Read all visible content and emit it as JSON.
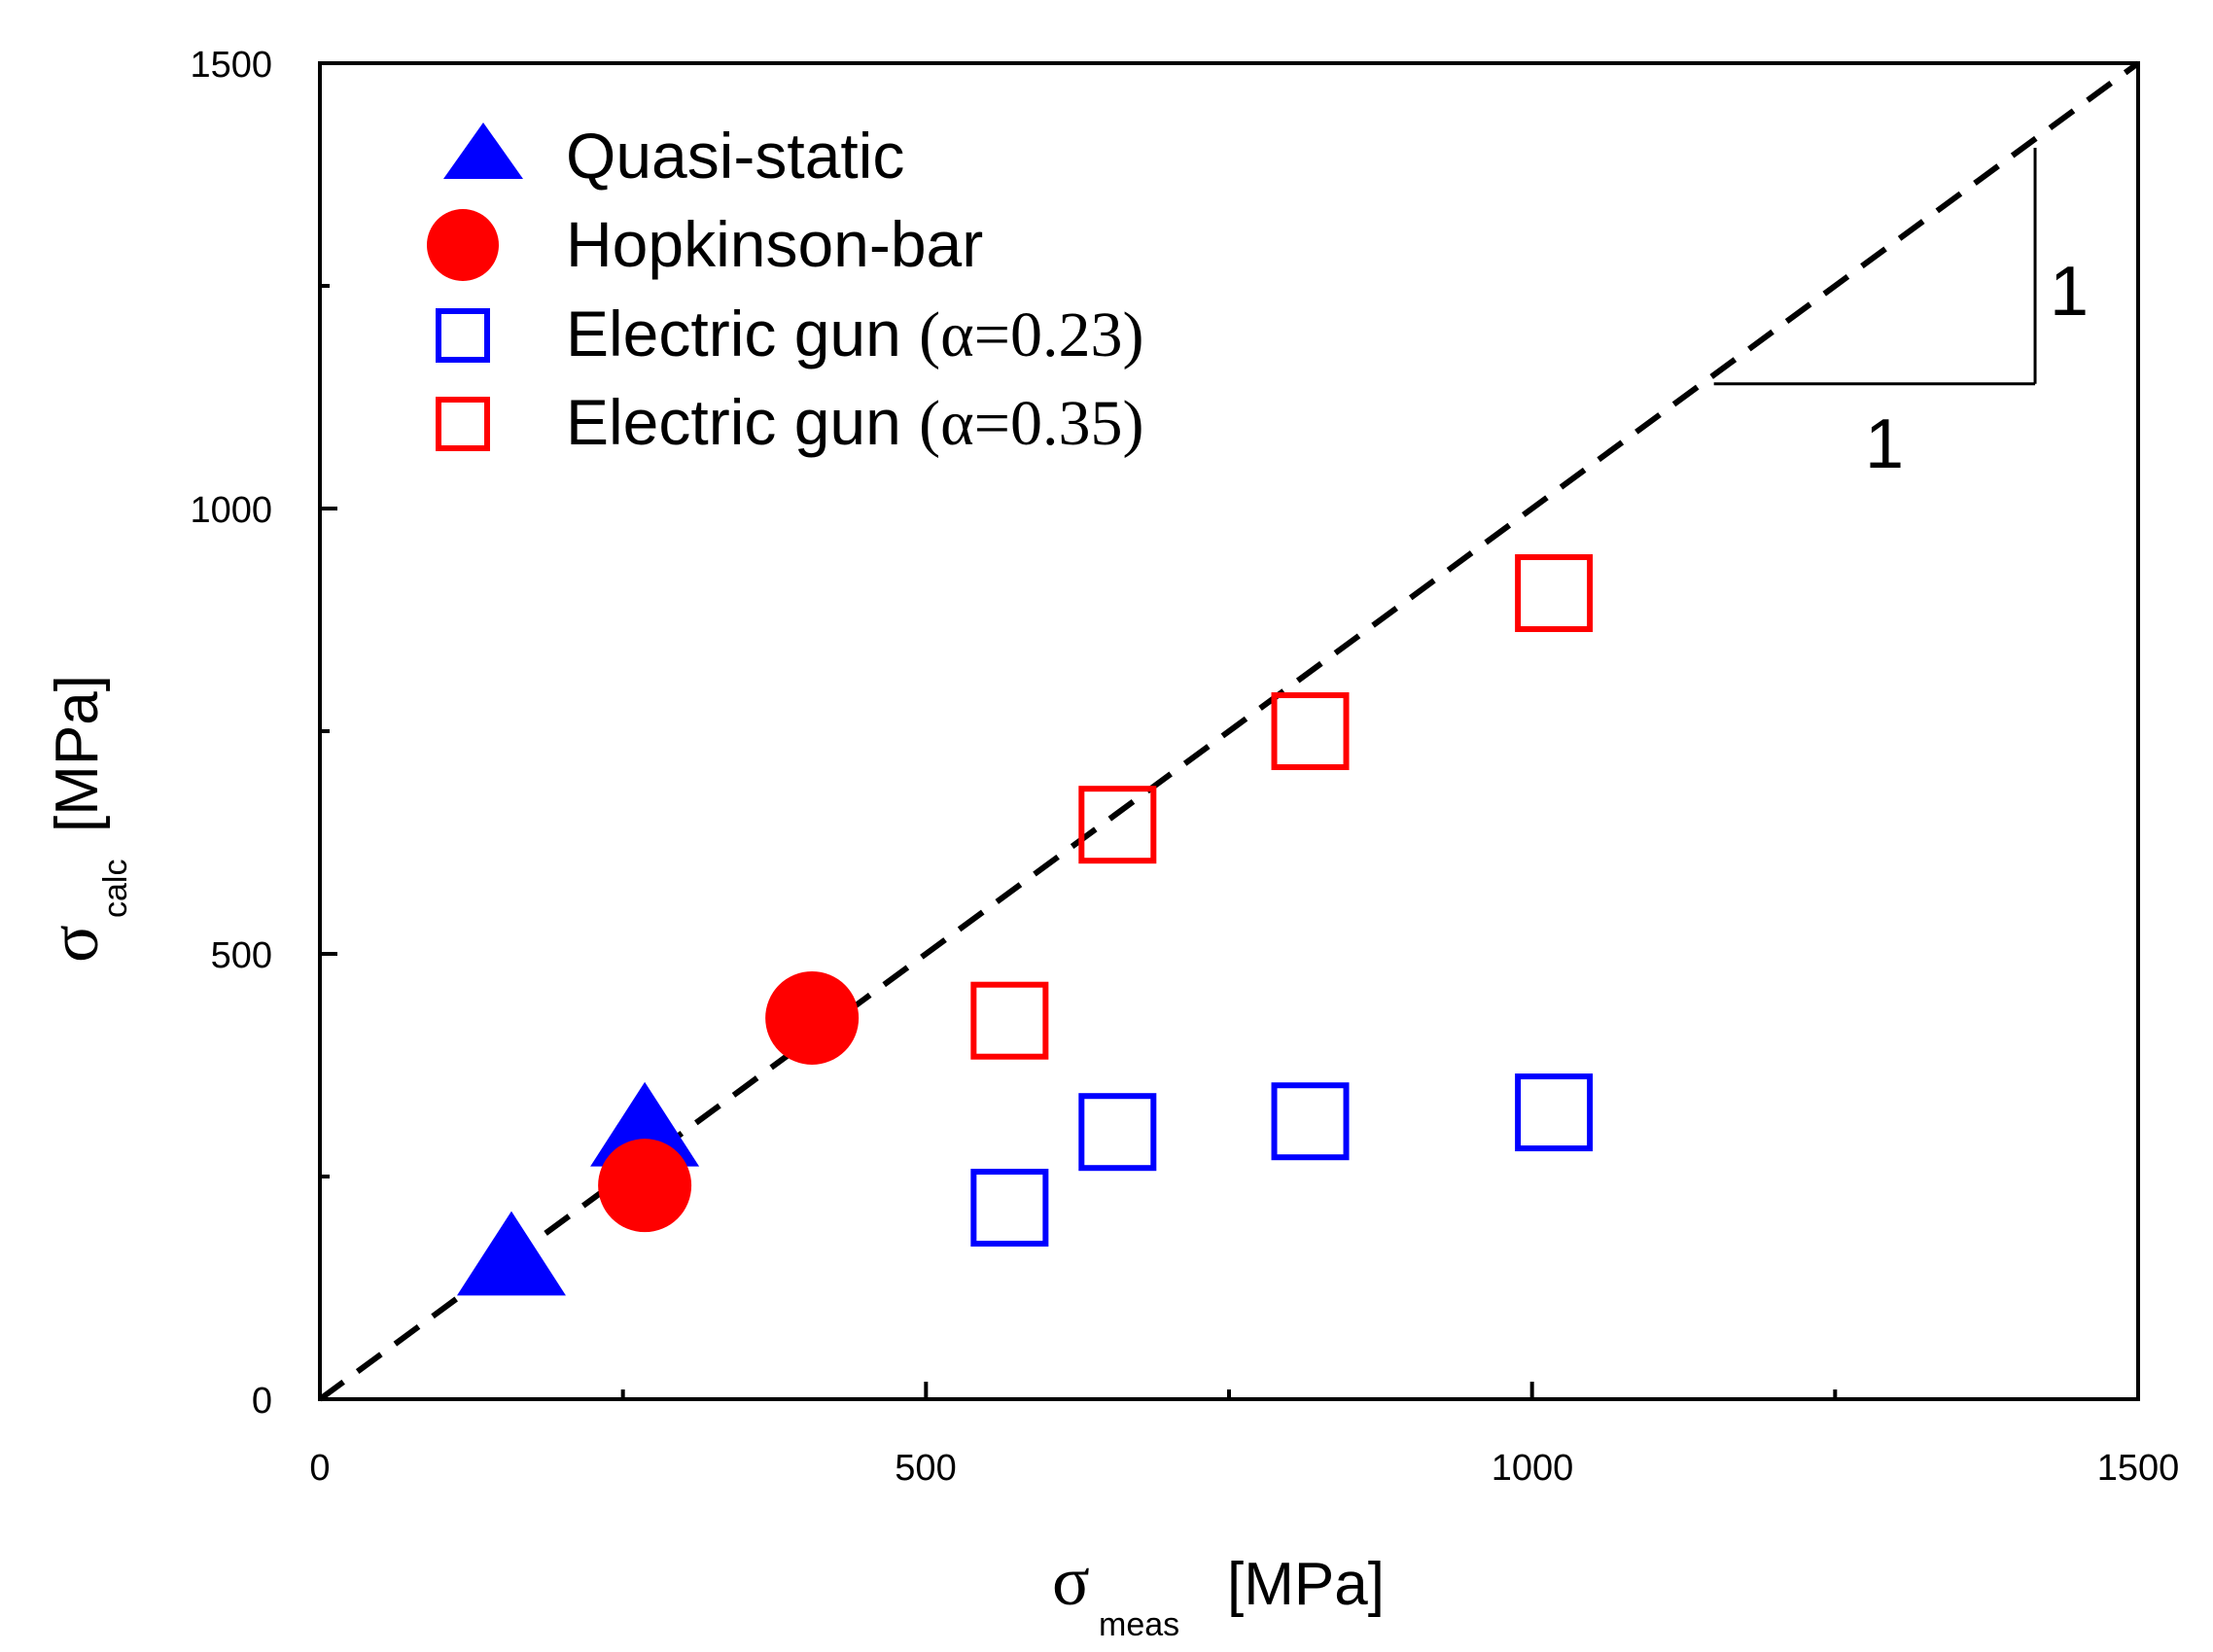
{
  "chart_data": {
    "type": "scatter",
    "xlabel": {
      "symbol": "σ",
      "subscript": "meas",
      "unit": "[MPa]"
    },
    "ylabel": {
      "symbol": "σ",
      "subscript": "calc",
      "unit": "[MPa]"
    },
    "xlim": [
      0,
      1500
    ],
    "ylim": [
      0,
      1500
    ],
    "xticks": [
      "0",
      "500",
      "1000",
      "1500"
    ],
    "yticks": [
      "0",
      "500",
      "1000",
      "1500"
    ],
    "grid": false,
    "legend_position": "top-left",
    "series": [
      {
        "name": "Quasi-static",
        "alpha_text": "",
        "marker": "triangle-filled",
        "color": "#0000ff",
        "points": [
          [
            158,
            150
          ],
          [
            268,
            295
          ]
        ]
      },
      {
        "name": "Hopkinson-bar",
        "alpha_text": "",
        "marker": "circle-filled",
        "color": "#ff0000",
        "points": [
          [
            268,
            240
          ],
          [
            406,
            428
          ]
        ]
      },
      {
        "name": "Electric gun",
        "alpha_text": "(α=0.23)",
        "marker": "square-open",
        "color": "#0000ff",
        "points": [
          [
            569,
            215
          ],
          [
            658,
            300
          ],
          [
            817,
            312
          ],
          [
            1018,
            322
          ]
        ]
      },
      {
        "name": "Electric gun",
        "alpha_text": "(α=0.35)",
        "marker": "square-open",
        "color": "#ff0000",
        "points": [
          [
            569,
            425
          ],
          [
            658,
            645
          ],
          [
            817,
            750
          ],
          [
            1018,
            905
          ]
        ]
      }
    ],
    "reference_line": {
      "style": "dashed",
      "color": "#000000",
      "from": [
        0,
        0
      ],
      "to": [
        1500,
        1500
      ]
    },
    "slope_triangle": {
      "run_label": "1",
      "rise_label": "1",
      "x": [
        1150,
        1415
      ],
      "y": [
        1140,
        1405
      ]
    }
  }
}
